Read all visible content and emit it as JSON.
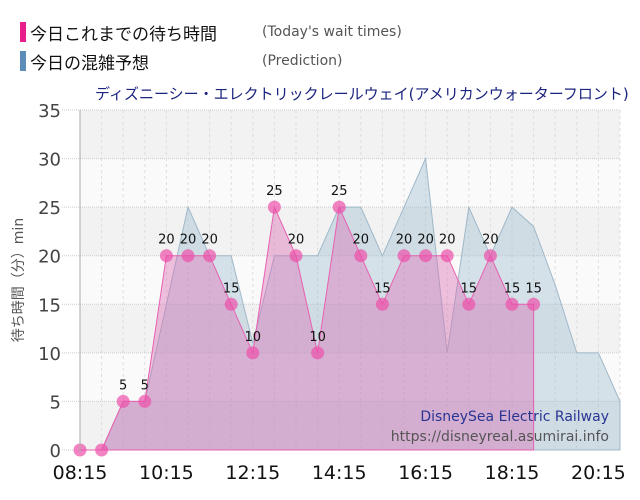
{
  "legend": {
    "actual": {
      "jp": "今日これまでの待ち時間",
      "en": "(Today's wait times)",
      "color": "#e91e8c"
    },
    "prediction": {
      "jp": "今日の混雑予想",
      "en": "(Prediction)",
      "color": "#5b8db8"
    }
  },
  "title": "ディズニーシー・エレクトリックレールウェイ(アメリカンウォーターフロント)",
  "watermark": {
    "line1": "DisneySea Electric Railway",
    "line2": "https://disneyreal.asumirai.info"
  },
  "chart_data": {
    "type": "area",
    "title": "ディズニーシー・エレクトリックレールウェイ(アメリカンウォーターフロント)",
    "xlabel": "",
    "ylabel": "待ち時間（分）min",
    "ylim": [
      0,
      35
    ],
    "yticks": [
      0,
      5,
      10,
      15,
      20,
      25,
      30,
      35
    ],
    "xtick_labels": [
      "08:15",
      "10:15",
      "12:15",
      "14:15",
      "16:15",
      "18:15",
      "20:15"
    ],
    "grid": true,
    "legend_position": "top-left",
    "x": [
      "08:15",
      "08:45",
      "09:15",
      "09:45",
      "10:15",
      "10:45",
      "11:15",
      "11:45",
      "12:15",
      "12:45",
      "13:15",
      "13:45",
      "14:15",
      "14:45",
      "15:15",
      "15:45",
      "16:15",
      "16:45",
      "17:15",
      "17:45",
      "18:15",
      "18:45",
      "19:15",
      "19:45",
      "20:15",
      "20:45"
    ],
    "series": [
      {
        "name": "今日これまでの待ち時間 (Today's wait times)",
        "color": "#e91e8c",
        "values": [
          0,
          0,
          5,
          5,
          20,
          20,
          20,
          15,
          10,
          25,
          20,
          10,
          25,
          20,
          15,
          20,
          20,
          20,
          15,
          20,
          15,
          15
        ]
      },
      {
        "name": "今日の混雑予想 (Prediction)",
        "color": "#8fb0c8",
        "values": [
          0,
          0,
          5,
          5,
          15,
          25,
          20,
          20,
          11,
          20,
          20,
          20,
          25,
          25,
          20,
          25,
          30,
          10,
          25,
          20,
          25,
          23,
          17,
          10,
          10,
          5
        ]
      }
    ]
  }
}
